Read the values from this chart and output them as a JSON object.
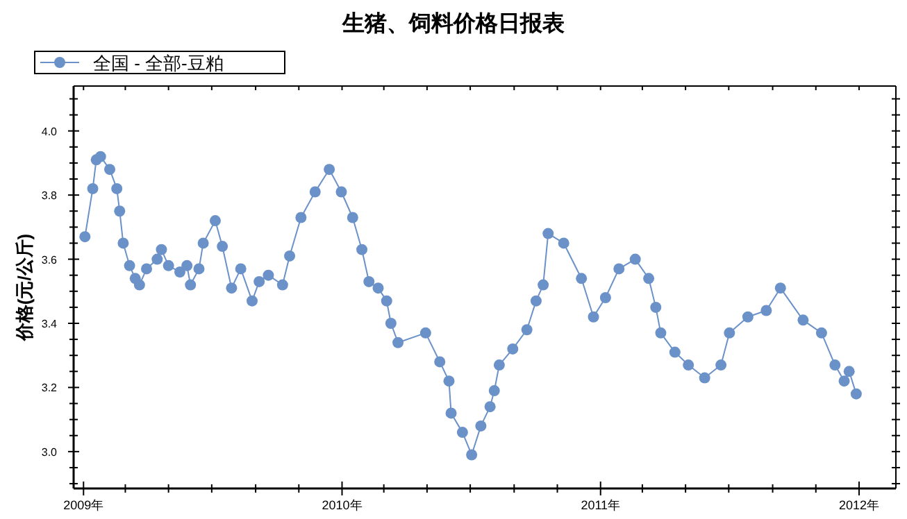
{
  "chart_data": {
    "type": "line",
    "title": "生猪、饲料价格日报表",
    "ylabel": "价格(元/公斤)",
    "legend": "top left",
    "marker": "circle",
    "line_style": "solid",
    "grid": false,
    "xlim": [
      "2008-12-18",
      "2012-02-22"
    ],
    "xticks": [
      {
        "value": "2009-01-01",
        "label": "2009年"
      },
      {
        "value": "2009-03-01",
        "label": null
      },
      {
        "value": "2009-05-01",
        "label": null
      },
      {
        "value": "2009-07-01",
        "label": null
      },
      {
        "value": "2009-09-01",
        "label": null
      },
      {
        "value": "2009-11-01",
        "label": null
      },
      {
        "value": "2010-01-01",
        "label": "2010年"
      },
      {
        "value": "2010-03-01",
        "label": null
      },
      {
        "value": "2010-05-01",
        "label": null
      },
      {
        "value": "2010-07-01",
        "label": null
      },
      {
        "value": "2010-09-01",
        "label": null
      },
      {
        "value": "2010-11-01",
        "label": null
      },
      {
        "value": "2011-01-01",
        "label": "2011年"
      },
      {
        "value": "2011-03-01",
        "label": null
      },
      {
        "value": "2011-05-01",
        "label": null
      },
      {
        "value": "2011-07-01",
        "label": null
      },
      {
        "value": "2011-09-01",
        "label": null
      },
      {
        "value": "2011-11-01",
        "label": null
      },
      {
        "value": "2012-01-01",
        "label": "2012年"
      }
    ],
    "ylim": [
      2.885,
      4.14
    ],
    "yticks": [
      {
        "value": 2.9,
        "label": null
      },
      {
        "value": 2.95,
        "label": null
      },
      {
        "value": 3.0,
        "label": "3.0"
      },
      {
        "value": 3.05,
        "label": null
      },
      {
        "value": 3.1,
        "label": null
      },
      {
        "value": 3.15,
        "label": null
      },
      {
        "value": 3.2,
        "label": "3.2"
      },
      {
        "value": 3.25,
        "label": null
      },
      {
        "value": 3.3,
        "label": null
      },
      {
        "value": 3.35,
        "label": null
      },
      {
        "value": 3.4,
        "label": "3.4"
      },
      {
        "value": 3.45,
        "label": null
      },
      {
        "value": 3.5,
        "label": null
      },
      {
        "value": 3.55,
        "label": null
      },
      {
        "value": 3.6,
        "label": "3.6"
      },
      {
        "value": 3.65,
        "label": null
      },
      {
        "value": 3.7,
        "label": null
      },
      {
        "value": 3.75,
        "label": null
      },
      {
        "value": 3.8,
        "label": "3.8"
      },
      {
        "value": 3.85,
        "label": null
      },
      {
        "value": 3.9,
        "label": null
      },
      {
        "value": 3.95,
        "label": null
      },
      {
        "value": 4.0,
        "label": "4.0"
      },
      {
        "value": 4.05,
        "label": null
      },
      {
        "value": 4.1,
        "label": null
      }
    ],
    "x": [
      "2009-01-03",
      "2009-01-14",
      "2009-01-19",
      "2009-01-25",
      "2009-02-07",
      "2009-02-17",
      "2009-02-21",
      "2009-02-26",
      "2009-03-07",
      "2009-03-15",
      "2009-03-21",
      "2009-03-31",
      "2009-04-15",
      "2009-04-21",
      "2009-05-01",
      "2009-05-17",
      "2009-05-27",
      "2009-06-01",
      "2009-06-13",
      "2009-06-19",
      "2009-07-06",
      "2009-07-16",
      "2009-07-29",
      "2009-08-11",
      "2009-08-27",
      "2009-09-06",
      "2009-09-19",
      "2009-10-09",
      "2009-10-19",
      "2009-11-04",
      "2009-11-24",
      "2009-12-14",
      "2009-12-31",
      "2010-01-16",
      "2010-01-29",
      "2010-02-08",
      "2010-02-21",
      "2010-03-05",
      "2010-03-11",
      "2010-03-21",
      "2010-04-29",
      "2010-05-19",
      "2010-06-01",
      "2010-06-04",
      "2010-06-20",
      "2010-07-03",
      "2010-07-16",
      "2010-07-29",
      "2010-08-04",
      "2010-08-11",
      "2010-08-30",
      "2010-09-19",
      "2010-10-02",
      "2010-10-12",
      "2010-10-19",
      "2010-11-10",
      "2010-12-05",
      "2010-12-22",
      "2011-01-08",
      "2011-01-27",
      "2011-02-19",
      "2011-03-10",
      "2011-03-20",
      "2011-03-27",
      "2011-04-16",
      "2011-05-05",
      "2011-05-28",
      "2011-06-20",
      "2011-07-02",
      "2011-07-28",
      "2011-08-23",
      "2011-09-12",
      "2011-10-14",
      "2011-11-09",
      "2011-11-28",
      "2011-12-11",
      "2011-12-18",
      "2011-12-28"
    ],
    "series": [
      {
        "name": "全国 - 全部-豆粕",
        "color": "#6b91c9",
        "values": [
          3.67,
          3.82,
          3.91,
          3.92,
          3.88,
          3.82,
          3.75,
          3.65,
          3.58,
          3.54,
          3.52,
          3.57,
          3.6,
          3.63,
          3.58,
          3.56,
          3.58,
          3.52,
          3.57,
          3.65,
          3.72,
          3.64,
          3.51,
          3.57,
          3.47,
          3.53,
          3.55,
          3.52,
          3.61,
          3.73,
          3.81,
          3.88,
          3.81,
          3.73,
          3.63,
          3.53,
          3.51,
          3.47,
          3.4,
          3.34,
          3.37,
          3.28,
          3.22,
          3.12,
          3.06,
          2.99,
          3.08,
          3.14,
          3.19,
          3.27,
          3.32,
          3.38,
          3.47,
          3.52,
          3.68,
          3.65,
          3.54,
          3.42,
          3.48,
          3.57,
          3.6,
          3.54,
          3.45,
          3.37,
          3.31,
          3.27,
          3.23,
          3.27,
          3.37,
          3.42,
          3.44,
          3.51,
          3.41,
          3.37,
          3.27,
          3.22,
          3.25,
          3.18
        ]
      }
    ]
  }
}
